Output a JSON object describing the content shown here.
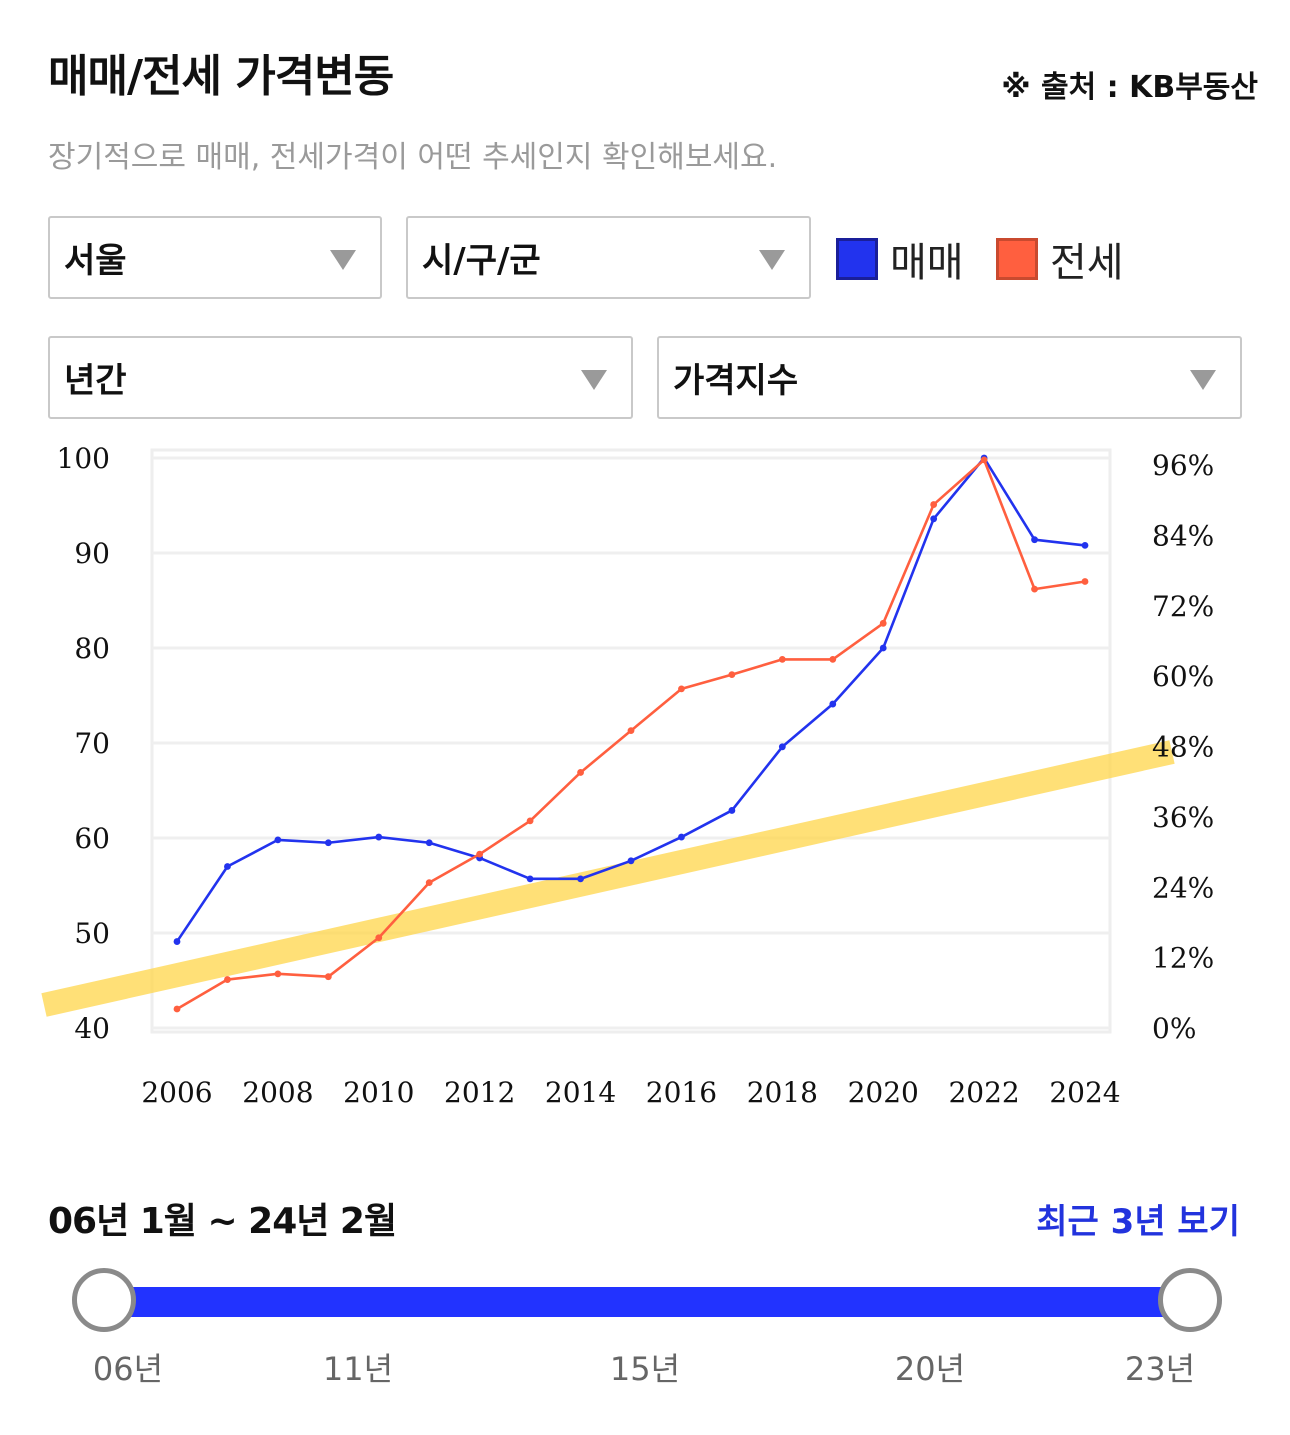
{
  "header": {
    "title": "매매/전세 가격변동",
    "source": "※ 출처 : KB부동산",
    "subtitle": "장기적으로 매매, 전세가격이 어떤 추세인지 확인해보세요."
  },
  "filters": {
    "region": "서울",
    "district": "시/구/군",
    "period": "년간",
    "metric": "가격지수"
  },
  "legend": {
    "sale": {
      "label": "매매",
      "color": "#2233ee"
    },
    "jeonse": {
      "label": "전세",
      "color": "#ff5f3f"
    }
  },
  "chart_data": {
    "type": "line",
    "x": [
      2006,
      2007,
      2008,
      2009,
      2010,
      2011,
      2012,
      2013,
      2014,
      2015,
      2016,
      2017,
      2018,
      2019,
      2020,
      2021,
      2022,
      2023,
      2024
    ],
    "x_ticks": [
      "2006",
      "2008",
      "2010",
      "2012",
      "2014",
      "2016",
      "2018",
      "2020",
      "2022",
      "2024"
    ],
    "y_left_ticks": [
      "100",
      "90",
      "80",
      "70",
      "60",
      "50",
      "40"
    ],
    "y_right_ticks": [
      "96%",
      "84%",
      "72%",
      "60%",
      "48%",
      "36%",
      "24%",
      "12%",
      "0%"
    ],
    "ylim_left": [
      40,
      100
    ],
    "ylim_right": [
      0,
      96
    ],
    "grid": true,
    "series": [
      {
        "name": "매매",
        "color": "#2233ee",
        "values": [
          49.1,
          57.0,
          59.8,
          59.5,
          60.1,
          59.5,
          57.9,
          55.7,
          55.7,
          57.6,
          60.1,
          62.9,
          69.6,
          74.1,
          80.0,
          93.6,
          100.0,
          91.4,
          90.8
        ]
      },
      {
        "name": "전세",
        "color": "#ff5f3f",
        "values": [
          42.0,
          45.1,
          45.7,
          45.4,
          49.5,
          55.3,
          58.3,
          61.8,
          66.9,
          71.3,
          75.7,
          77.2,
          78.8,
          78.8,
          82.6,
          95.1,
          99.8,
          86.2,
          87.0
        ]
      }
    ],
    "highlight_band_color": "#ffd54a"
  },
  "range": {
    "label": "06년 1월 ~ 24년 2월",
    "recent_button": "최근 3년 보기",
    "ticks": [
      "06년",
      "11년",
      "15년",
      "20년",
      "23년"
    ],
    "start": "06년",
    "end": "23년"
  }
}
